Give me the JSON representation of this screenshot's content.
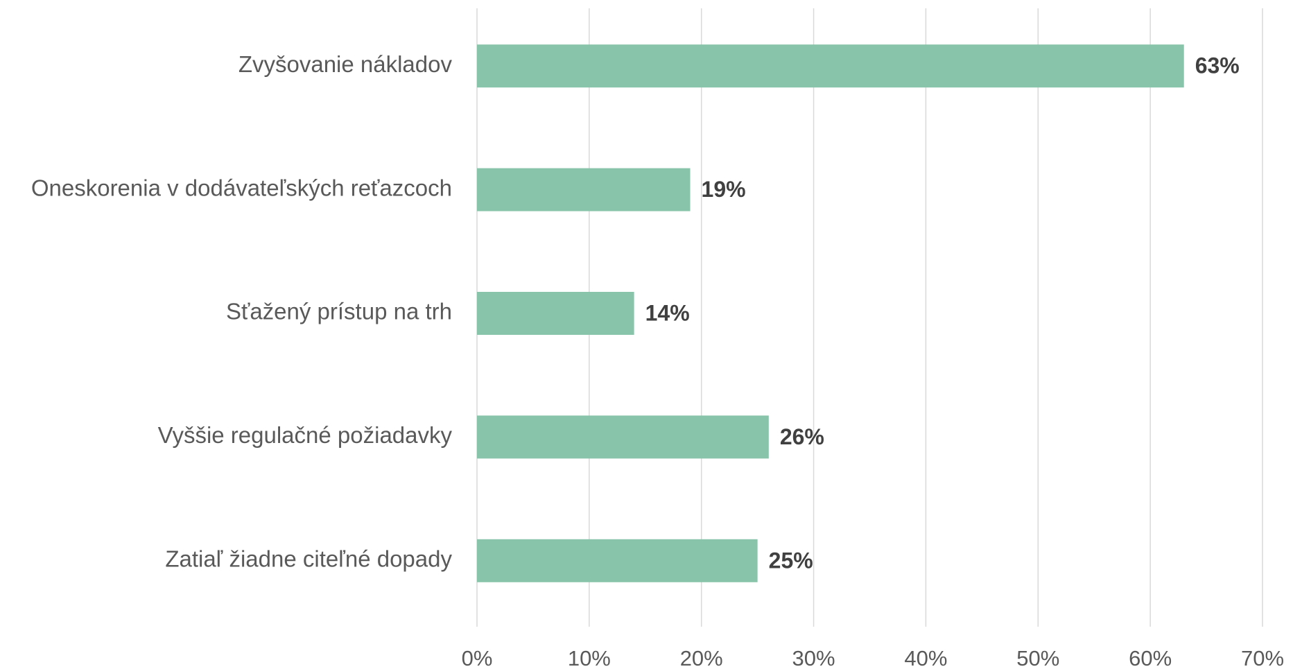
{
  "chart_data": {
    "type": "bar",
    "orientation": "horizontal",
    "categories": [
      "Zvyšovanie nákladov",
      "Oneskorenia v dodávateľských reťazcoch",
      "Sťažený prístup na trh",
      "Vyššie regulačné požiadavky",
      "Zatiaľ žiadne citeľné dopady"
    ],
    "values": [
      63,
      19,
      14,
      26,
      25
    ],
    "value_labels": [
      "63%",
      "19%",
      "14%",
      "26%",
      "25%"
    ],
    "color": "#88c4a9",
    "xlim": [
      0,
      70
    ],
    "xticks": [
      {
        "value": 0,
        "label": "0%"
      },
      {
        "value": 10,
        "label": "10%"
      },
      {
        "value": 20,
        "label": "20%"
      },
      {
        "value": 30,
        "label": "30%"
      },
      {
        "value": 40,
        "label": "40%"
      },
      {
        "value": 50,
        "label": "50%"
      },
      {
        "value": 60,
        "label": "60%"
      },
      {
        "value": 70,
        "label": "70%"
      }
    ],
    "grid": true
  }
}
